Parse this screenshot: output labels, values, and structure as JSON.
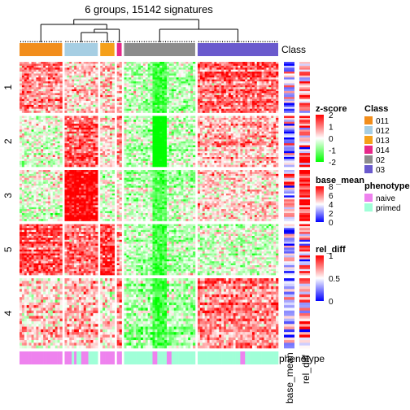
{
  "chart_data": {
    "type": "heatmap",
    "title": "6 groups, 15142 signatures",
    "row_slices": [
      "1",
      "2",
      "3",
      "5",
      "4"
    ],
    "row_slice_weights": [
      64,
      64,
      64,
      64,
      88
    ],
    "column_groups": [
      {
        "name": "011",
        "color": "#F28E1C",
        "ncol": 18,
        "rel": 0.03
      },
      {
        "name": "012",
        "color": "#A6CEE3",
        "ncol": 14,
        "rel": 0.03
      },
      {
        "name": "013",
        "color": "#F5A01A",
        "ncol": 6,
        "rel": 0.03
      },
      {
        "name": "014",
        "color": "#E7298A",
        "ncol": 2,
        "rel": 0.03
      },
      {
        "name": "02",
        "color": "#8C8C8C",
        "ncol": 30,
        "rel": 0.03
      },
      {
        "name": "03",
        "color": "#6A5ACD",
        "ncol": 34,
        "rel": 0.03
      }
    ],
    "group_pattern": {
      "011": [
        0.9,
        -0.3,
        -0.2,
        1.4,
        0.4
      ],
      "012": [
        0.4,
        1.3,
        2.2,
        1.1,
        0.5
      ],
      "013": [
        0.3,
        0.2,
        -0.2,
        1.5,
        0.2
      ],
      "014": [
        0.5,
        0.8,
        0.3,
        0.6,
        0.9
      ],
      "02": [
        -0.6,
        -0.4,
        -0.5,
        -0.6,
        -0.6
      ],
      "03": [
        1.2,
        0.5,
        0.3,
        -0.3,
        0.9
      ]
    },
    "phenotype_pattern": {
      "011": "naive",
      "012": "mixed",
      "013": "naive",
      "014": "naive",
      "02": "mixed",
      "03": "primed"
    },
    "top_annotation_label": "Class",
    "bottom_annotation_label": "phenotype",
    "row_annotation_labels": [
      "base_mean",
      "rel_diff"
    ],
    "legends": {
      "zscore": {
        "title": "z-score",
        "ticks": [
          "2",
          "1",
          "0",
          "-1",
          "-2"
        ],
        "low": "#00FF00",
        "mid": "#FFFFFF",
        "high": "#FF0000"
      },
      "base_mean": {
        "title": "base_mean",
        "ticks": [
          "8",
          "6",
          "4",
          "2",
          "0"
        ],
        "low": "#0000FF",
        "mid": "#FFFFFF",
        "high": "#FF0000"
      },
      "rel_diff": {
        "title": "rel_diff",
        "ticks": [
          "1",
          "0.5",
          "0"
        ],
        "low": "#0000FF",
        "mid": "#FFFFFF",
        "high": "#FF0000"
      },
      "class": {
        "title": "Class",
        "entries": [
          "011",
          "012",
          "013",
          "014",
          "02",
          "03"
        ]
      },
      "phenotype": {
        "title": "phenotype",
        "entries": [
          {
            "label": "naive",
            "color": "#EE82EE"
          },
          {
            "label": "primed",
            "color": "#A0FFD8"
          }
        ]
      }
    }
  }
}
